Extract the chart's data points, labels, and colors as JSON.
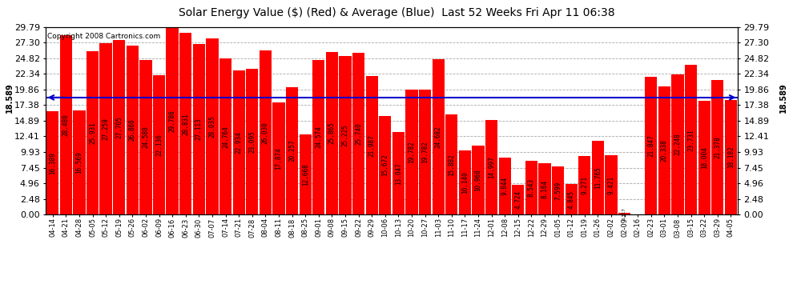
{
  "title": "Solar Energy Value ($) (Red) & Average (Blue)  Last 52 Weeks Fri Apr 11 06:38",
  "copyright": "Copyright 2008 Cartronics.com",
  "average": 18.589,
  "avg_label": "18.589",
  "bar_color": "#ff0000",
  "avg_line_color": "#0000cc",
  "background_color": "#ffffff",
  "plot_bg_color": "#ffffff",
  "yticks": [
    0.0,
    2.48,
    4.96,
    7.45,
    9.93,
    12.41,
    14.89,
    17.38,
    19.86,
    22.34,
    24.82,
    27.3,
    29.79
  ],
  "ymax": 29.79,
  "title_fontsize": 10,
  "tick_fontsize": 8,
  "bar_label_fontsize": 5.5,
  "copyright_fontsize": 6.5,
  "categories": [
    "04-14",
    "04-21",
    "04-28",
    "05-05",
    "05-12",
    "05-19",
    "05-26",
    "06-02",
    "06-09",
    "06-16",
    "06-23",
    "06-30",
    "07-07",
    "07-14",
    "07-21",
    "07-28",
    "08-04",
    "08-11",
    "08-18",
    "08-25",
    "09-01",
    "09-08",
    "09-15",
    "09-22",
    "09-29",
    "10-06",
    "10-13",
    "10-20",
    "10-27",
    "11-03",
    "11-10",
    "11-17",
    "11-24",
    "12-01",
    "12-08",
    "12-15",
    "12-22",
    "12-29",
    "01-05",
    "01-12",
    "01-19",
    "01-26",
    "02-02",
    "02-09",
    "02-16",
    "02-23",
    "03-01",
    "03-08",
    "03-15",
    "03-22",
    "03-29",
    "04-05"
  ],
  "values": [
    16.389,
    28.48,
    16.569,
    25.931,
    27.259,
    27.705,
    26.86,
    24.58,
    22.136,
    29.786,
    28.831,
    27.113,
    28.035,
    24.764,
    22.934,
    23.095,
    26.03,
    17.874,
    20.257,
    12.668,
    24.574,
    25.865,
    25.225,
    25.74,
    21.987,
    15.672,
    13.047,
    19.782,
    19.782,
    24.682,
    15.882,
    10.14,
    10.96,
    14.997,
    9.044,
    4.724,
    8.543,
    8.164,
    7.599,
    4.845,
    9.271,
    11.765,
    9.421,
    0.317,
    0.0,
    21.847,
    20.338,
    22.248,
    23.731,
    18.004,
    21.378,
    18.182
  ]
}
